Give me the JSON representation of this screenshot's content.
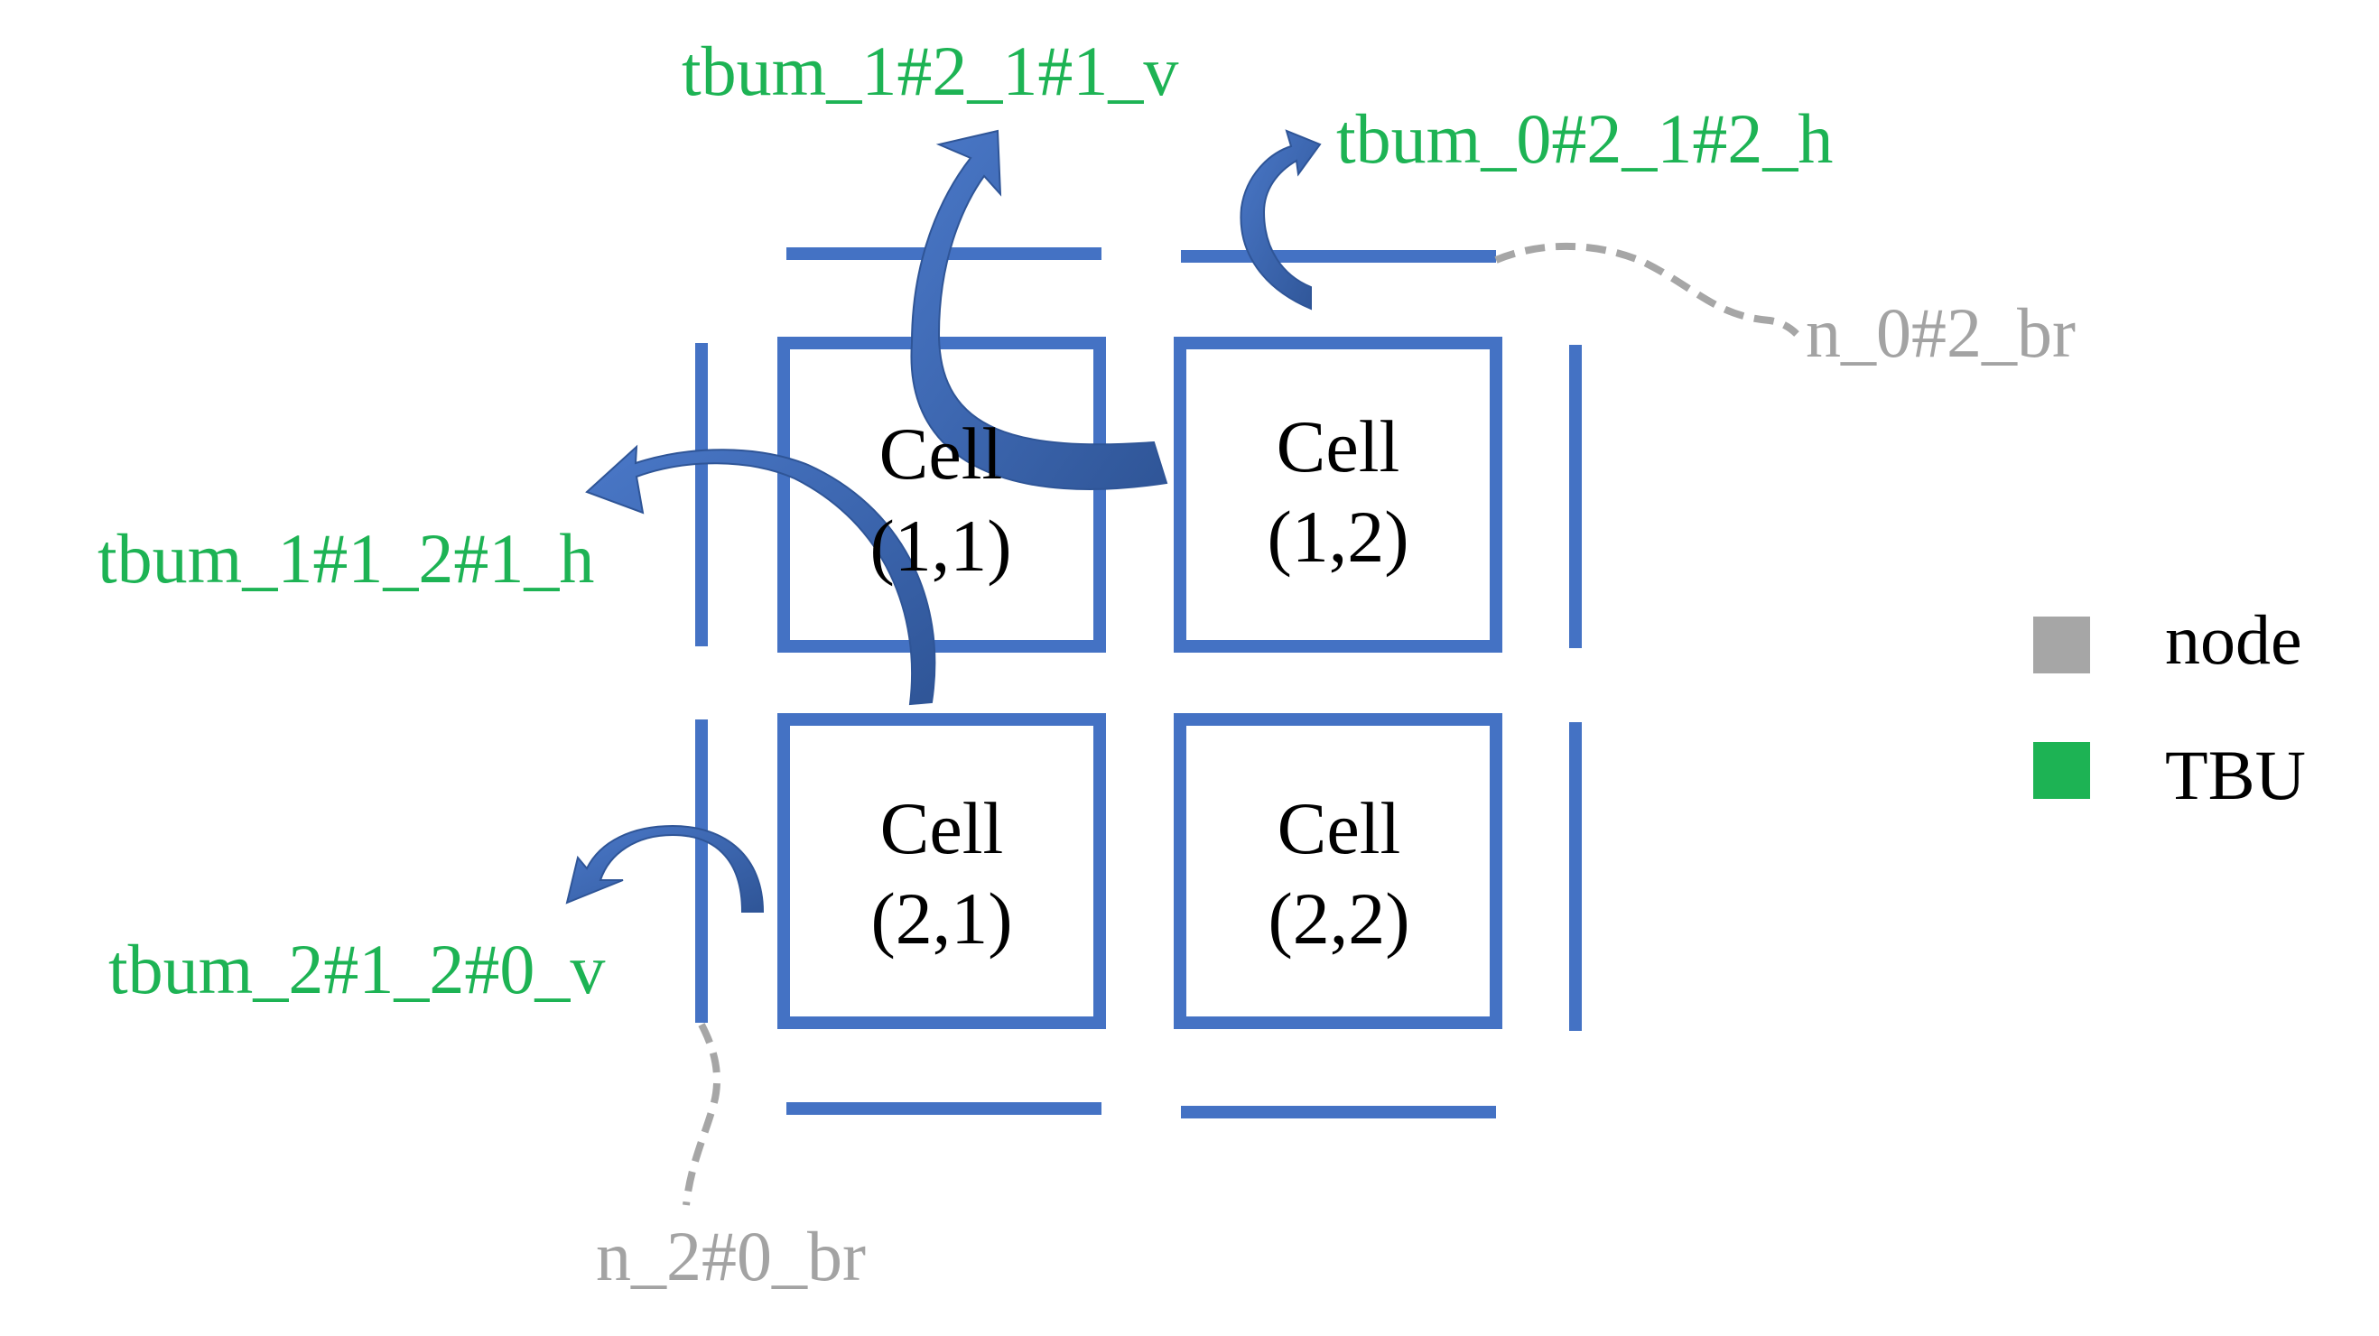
{
  "cells": [
    {
      "line1": "Cell",
      "line2": "(1,1)"
    },
    {
      "line1": "Cell",
      "line2": "(1,2)"
    },
    {
      "line1": "Cell",
      "line2": "(2,1)"
    },
    {
      "line1": "Cell",
      "line2": "(2,2)"
    }
  ],
  "tbu_labels": {
    "top_left": "tbum_1#2_1#1_v",
    "top_right": "tbum_0#2_1#2_h",
    "mid_left": "tbum_1#1_2#1_h",
    "bottom_left": "tbum_2#1_2#0_v"
  },
  "node_labels": {
    "upper_right": "n_0#2_br",
    "lower_left": "n_2#0_br"
  },
  "legend": [
    {
      "label": "node",
      "color": "#a6a6a6"
    },
    {
      "label": "TBU",
      "color": "#1db354"
    }
  ],
  "colors": {
    "grid_blue": "#4472c4",
    "arrow_blue": "#4472c4",
    "arrow_dark": "#2f5597",
    "tbu_green": "#1db354",
    "node_gray": "#a6a6a6"
  }
}
